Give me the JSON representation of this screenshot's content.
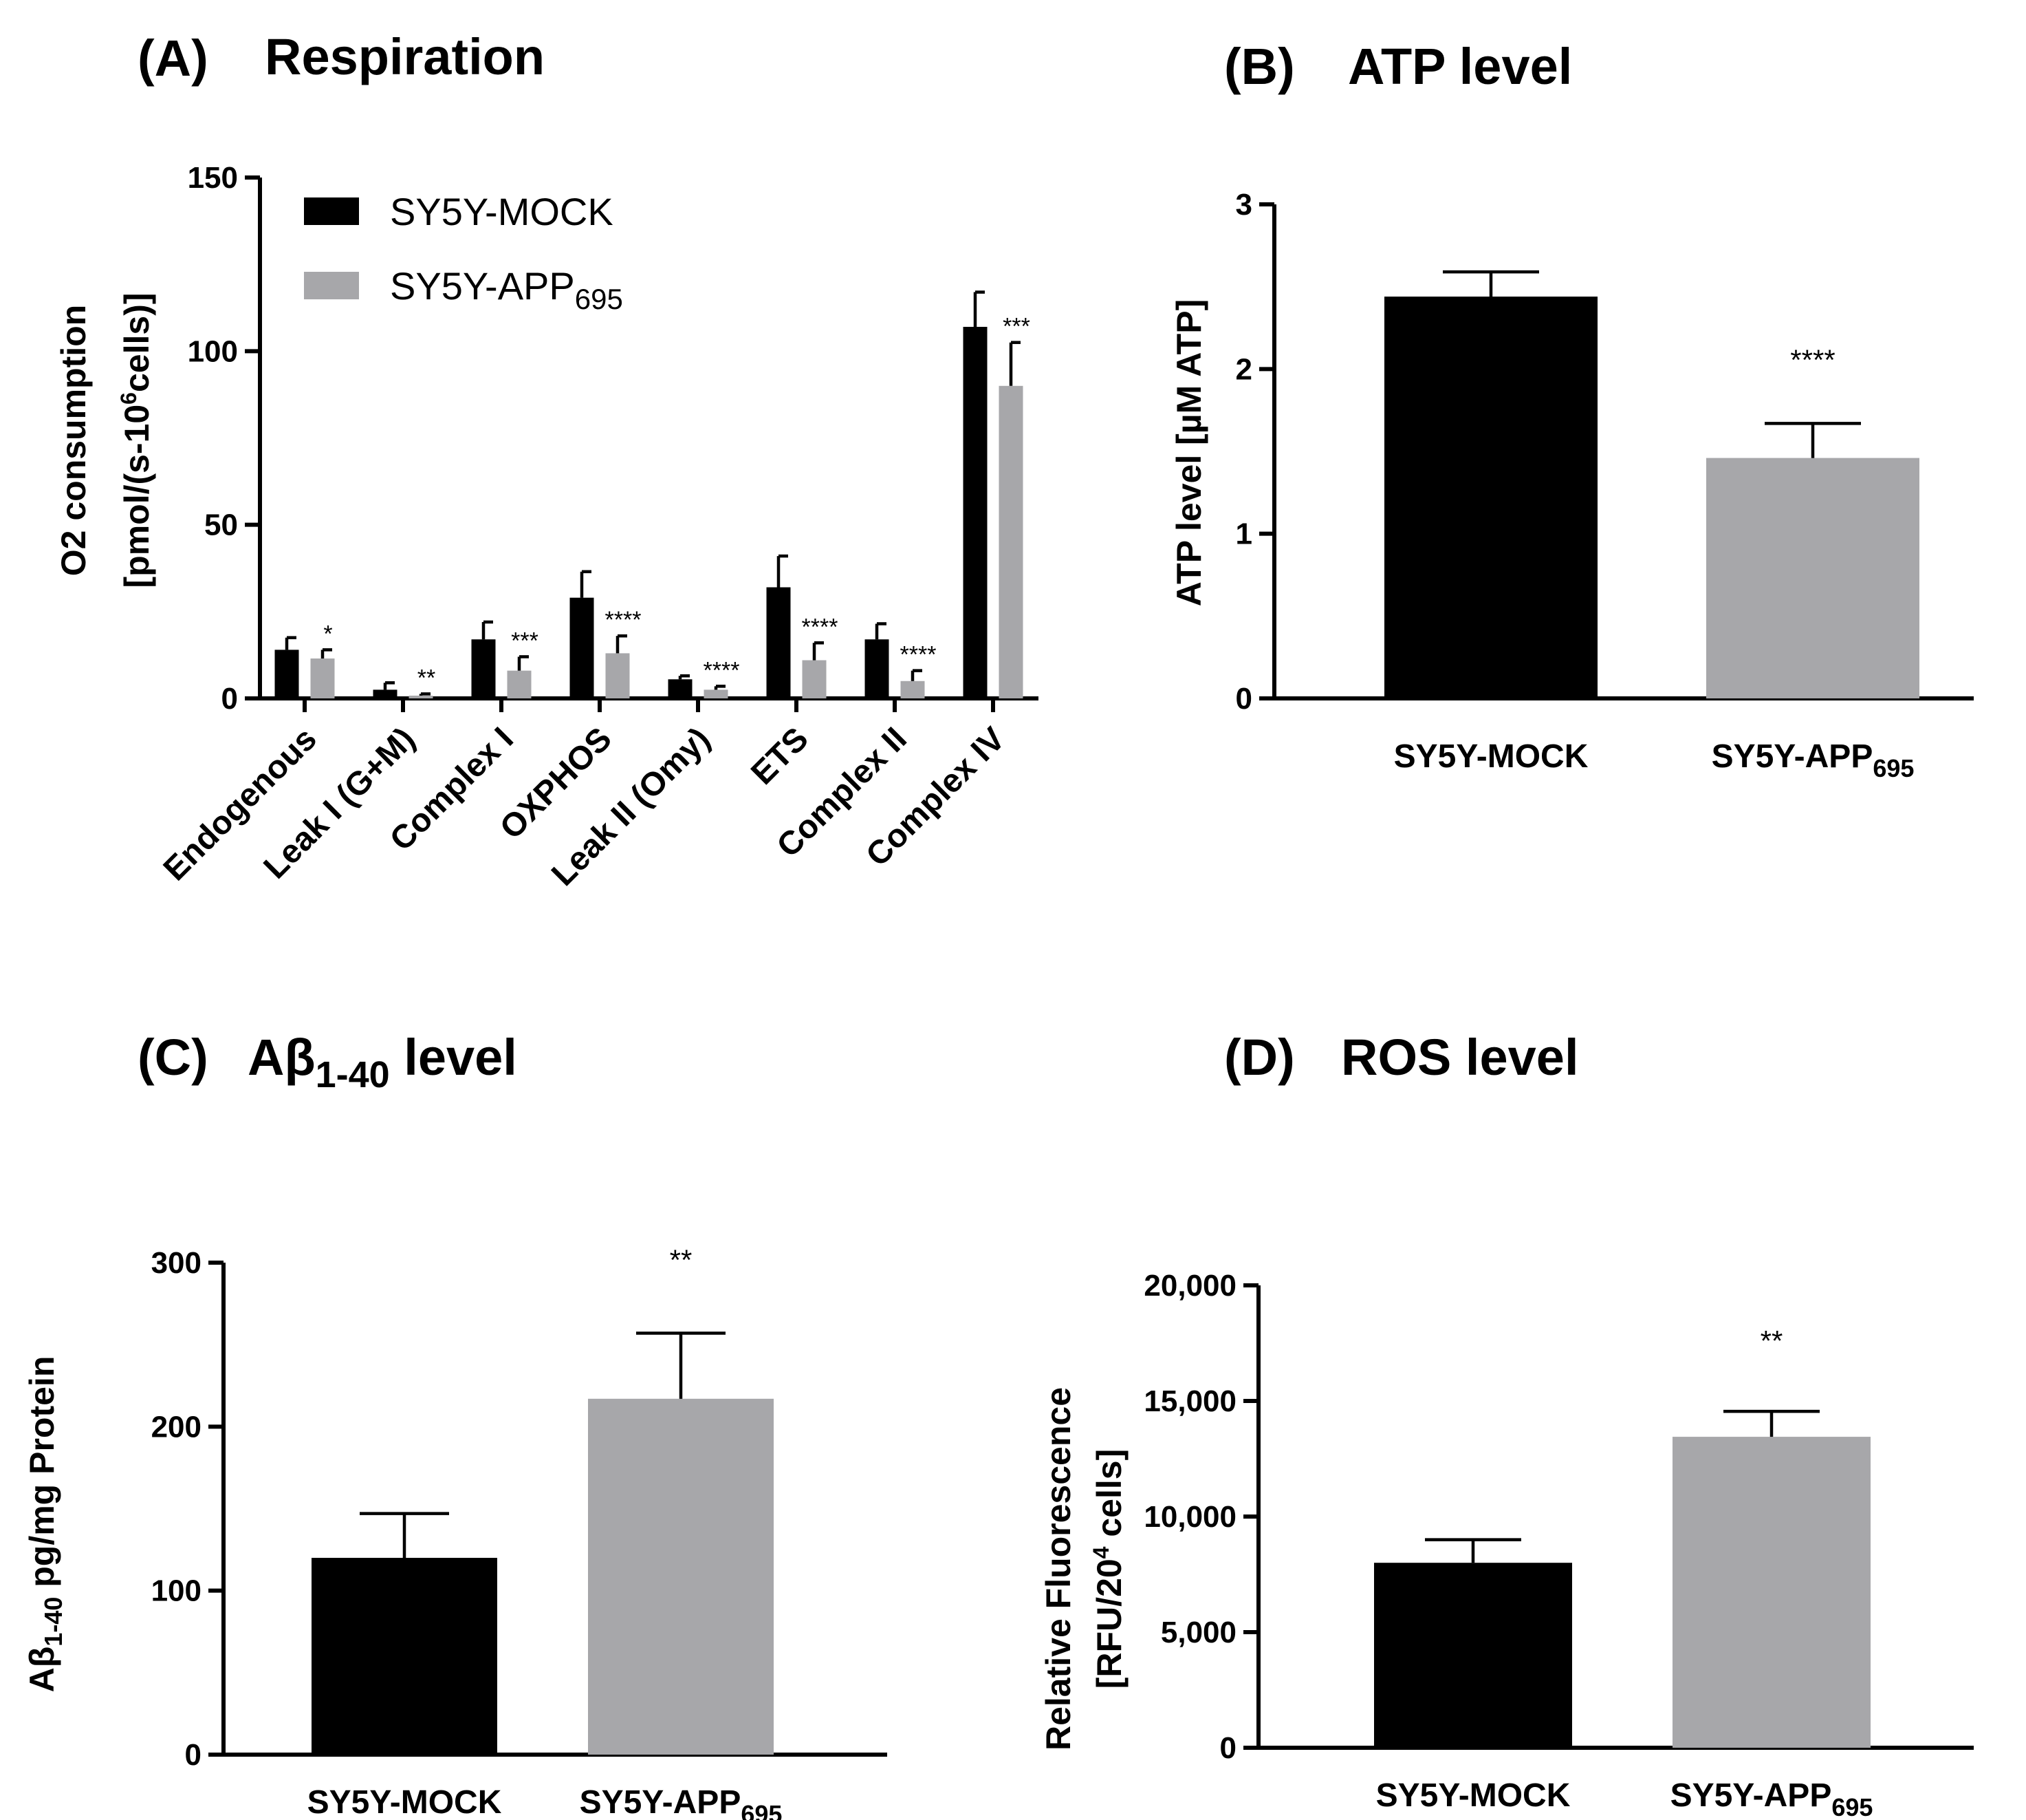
{
  "colors": {
    "mock": "#000000",
    "app": "#a7a7aa"
  },
  "panels": {
    "A": {
      "label": "(A)",
      "title": "Respiration",
      "ylabel": [
        "O2 consumption",
        "[pmol/(s-10",
        "6",
        "cells)]"
      ],
      "legend": [
        {
          "text": "SY5Y-MOCK",
          "sub": ""
        },
        {
          "text": "SY5Y-APP",
          "sub": "695"
        }
      ]
    },
    "B": {
      "label": "(B)",
      "title": "ATP level",
      "ylabel": "ATP level [µM ATP]"
    },
    "C": {
      "label": "(C)",
      "title": "Aβ",
      "title_sub": "1-40",
      "title_rest": " level",
      "ylabel": "Aβ",
      "ylabel_sub": "1-40",
      "ylabel_rest": " pg/mg Protein"
    },
    "D": {
      "label": "(D)",
      "title": "ROS level",
      "ylabel": [
        "Relative Fluorescence",
        "[RFU/20",
        "4",
        " cells]"
      ]
    }
  },
  "chart_data": [
    {
      "id": "A",
      "type": "bar",
      "title": "Respiration",
      "ylabel": "O2 consumption [pmol/(s-10^6cells)]",
      "ylim": [
        0,
        150
      ],
      "yticks": [
        "0",
        "50",
        "100",
        "150"
      ],
      "yticks_values": [
        0,
        50,
        100,
        150
      ],
      "categories": [
        "Endogenous",
        "Leak I (G+M)",
        "Complex I",
        "OXPHOS",
        "Leak II (Omy)",
        "ETS",
        "Complex II",
        "Complex IV"
      ],
      "series": [
        {
          "name": "SY5Y-MOCK",
          "values": [
            14,
            2.5,
            17,
            29,
            5.5,
            32,
            17,
            107
          ],
          "errors": [
            3.5,
            2,
            5,
            7.5,
            1,
            9,
            4.5,
            10
          ]
        },
        {
          "name": "SY5Y-APP695",
          "values": [
            11.5,
            0.8,
            8,
            13,
            2.5,
            11,
            5,
            90
          ],
          "errors": [
            2.5,
            0.5,
            4,
            5,
            1,
            5,
            3,
            12.5
          ]
        }
      ],
      "significance": [
        "*",
        "**",
        "***",
        "****",
        "****",
        "****",
        "****",
        "***"
      ],
      "legend_position": "top-left"
    },
    {
      "id": "B",
      "type": "bar",
      "title": "ATP level",
      "ylabel": "ATP level [µM ATP]",
      "ylim": [
        0,
        3
      ],
      "yticks": [
        "0",
        "1",
        "2",
        "3"
      ],
      "yticks_values": [
        0,
        1,
        2,
        3
      ],
      "categories": [
        {
          "text": "SY5Y-MOCK",
          "sub": ""
        },
        {
          "text": "SY5Y-APP",
          "sub": "695"
        }
      ],
      "values": [
        2.44,
        1.46
      ],
      "errors": [
        0.15,
        0.21
      ],
      "significance": [
        "",
        "****"
      ]
    },
    {
      "id": "C",
      "type": "bar",
      "title": "Aβ1-40 level",
      "ylabel": "Aβ1-40 pg/mg Protein",
      "ylim": [
        0,
        300
      ],
      "yticks": [
        "0",
        "100",
        "200",
        "300"
      ],
      "yticks_values": [
        0,
        100,
        200,
        300
      ],
      "categories": [
        {
          "text": "SY5Y-MOCK",
          "sub": ""
        },
        {
          "text": "SY5Y-APP",
          "sub": "695"
        }
      ],
      "values": [
        120,
        217
      ],
      "errors": [
        27,
        40
      ],
      "significance": [
        "",
        "**"
      ]
    },
    {
      "id": "D",
      "type": "bar",
      "title": "ROS level",
      "ylabel": "Relative Fluorescence [RFU/20^4 cells]",
      "ylim": [
        0,
        20000
      ],
      "yticks": [
        "0",
        "5,000",
        "10,000",
        "15,000",
        "20,000"
      ],
      "yticks_values": [
        0,
        5000,
        10000,
        15000,
        20000
      ],
      "categories": [
        {
          "text": "SY5Y-MOCK",
          "sub": ""
        },
        {
          "text": "SY5Y-APP",
          "sub": "695"
        }
      ],
      "values": [
        8000,
        13450
      ],
      "errors": [
        1000,
        1100
      ],
      "significance": [
        "",
        "**"
      ]
    }
  ]
}
